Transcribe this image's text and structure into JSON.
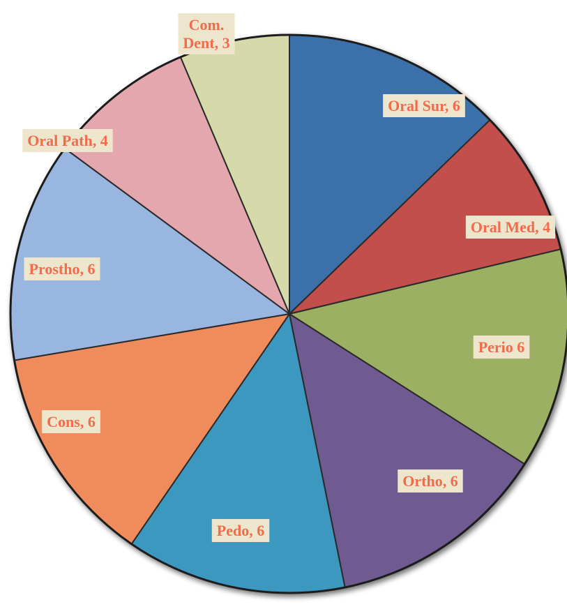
{
  "chart_data": {
    "type": "pie",
    "title": "",
    "start_angle_deg": 0,
    "direction": "clockwise",
    "slices": [
      {
        "label": "Oral Sur, 6",
        "value": 6,
        "color": "#3b6fa8"
      },
      {
        "label": "Oral Med, 4",
        "value": 4,
        "color": "#c24f4c"
      },
      {
        "label": "Perio 6",
        "value": 6,
        "color": "#9cb064"
      },
      {
        "label": "Ortho, 6",
        "value": 6,
        "color": "#705a92"
      },
      {
        "label": "Pedo, 6",
        "value": 6,
        "color": "#3d98bf"
      },
      {
        "label": "Cons, 6",
        "value": 6,
        "color": "#f08c5c"
      },
      {
        "label": "Prostho, 6",
        "value": 6,
        "color": "#98b6df"
      },
      {
        "label": "Oral Path, 4",
        "value": 4,
        "color": "#e4a7ad"
      },
      {
        "label": "Com.\nDent, 3",
        "value": 3,
        "color": "#d6d9aa"
      }
    ],
    "label_style": {
      "text_color": "#f26b4c",
      "box_color": "#ede6cc"
    }
  }
}
